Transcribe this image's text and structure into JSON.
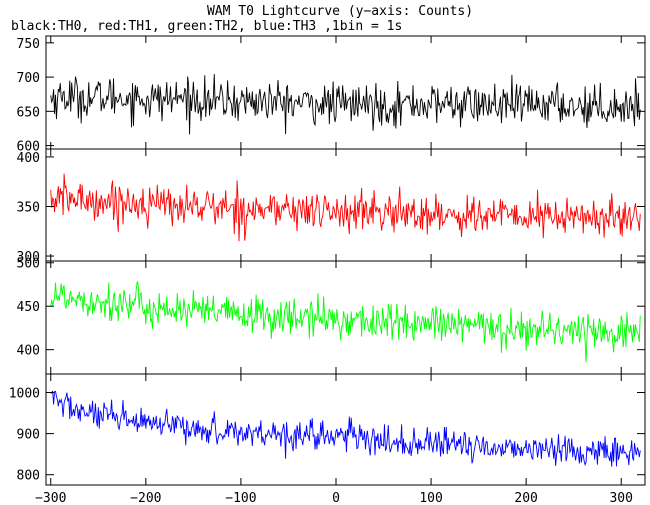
{
  "chart_data": {
    "type": "line",
    "title": "WAM T0 Lightcurve (y−axis: Counts)",
    "subtitle": "black:TH0, red:TH1, green:TH2, blue:TH3 ,1bin = 1s",
    "xlim": [
      -305,
      325
    ],
    "x_ticks": [
      -300,
      -200,
      -100,
      0,
      100,
      200,
      300
    ],
    "x_step": 1,
    "panels": [
      {
        "name": "TH0",
        "color": "#000000",
        "ylim": [
          595,
          760
        ],
        "y_ticks": [
          600,
          650,
          700,
          750
        ],
        "values_every_20s": [
          {
            "x": -300,
            "y": 670
          },
          {
            "x": -280,
            "y": 672
          },
          {
            "x": -260,
            "y": 669
          },
          {
            "x": -240,
            "y": 671
          },
          {
            "x": -220,
            "y": 670
          },
          {
            "x": -200,
            "y": 668
          },
          {
            "x": -180,
            "y": 667
          },
          {
            "x": -160,
            "y": 670
          },
          {
            "x": -140,
            "y": 666
          },
          {
            "x": -120,
            "y": 665
          },
          {
            "x": -100,
            "y": 664
          },
          {
            "x": -80,
            "y": 665
          },
          {
            "x": -60,
            "y": 663
          },
          {
            "x": -40,
            "y": 662
          },
          {
            "x": -20,
            "y": 661
          },
          {
            "x": 0,
            "y": 660
          },
          {
            "x": 20,
            "y": 661
          },
          {
            "x": 40,
            "y": 660
          },
          {
            "x": 60,
            "y": 659
          },
          {
            "x": 80,
            "y": 661
          },
          {
            "x": 100,
            "y": 660
          },
          {
            "x": 120,
            "y": 662
          },
          {
            "x": 140,
            "y": 660
          },
          {
            "x": 160,
            "y": 659
          },
          {
            "x": 180,
            "y": 658
          },
          {
            "x": 200,
            "y": 660
          },
          {
            "x": 220,
            "y": 661
          },
          {
            "x": 240,
            "y": 659
          },
          {
            "x": 260,
            "y": 658
          },
          {
            "x": 280,
            "y": 657
          },
          {
            "x": 300,
            "y": 658
          },
          {
            "x": 320,
            "y": 657
          }
        ],
        "scatter": 30
      },
      {
        "name": "TH1",
        "color": "#ff0000",
        "ylim": [
          295,
          408
        ],
        "y_ticks": [
          300,
          350,
          400
        ],
        "values_every_20s": [
          {
            "x": -300,
            "y": 357
          },
          {
            "x": -280,
            "y": 358
          },
          {
            "x": -260,
            "y": 356
          },
          {
            "x": -240,
            "y": 355
          },
          {
            "x": -220,
            "y": 354
          },
          {
            "x": -200,
            "y": 353
          },
          {
            "x": -180,
            "y": 352
          },
          {
            "x": -160,
            "y": 351
          },
          {
            "x": -140,
            "y": 350
          },
          {
            "x": -120,
            "y": 349
          },
          {
            "x": -100,
            "y": 348
          },
          {
            "x": -80,
            "y": 347
          },
          {
            "x": -60,
            "y": 347
          },
          {
            "x": -40,
            "y": 346
          },
          {
            "x": -20,
            "y": 345
          },
          {
            "x": 0,
            "y": 345
          },
          {
            "x": 20,
            "y": 344
          },
          {
            "x": 40,
            "y": 344
          },
          {
            "x": 60,
            "y": 343
          },
          {
            "x": 80,
            "y": 343
          },
          {
            "x": 100,
            "y": 342
          },
          {
            "x": 120,
            "y": 342
          },
          {
            "x": 140,
            "y": 341
          },
          {
            "x": 160,
            "y": 341
          },
          {
            "x": 180,
            "y": 340
          },
          {
            "x": 200,
            "y": 340
          },
          {
            "x": 220,
            "y": 340
          },
          {
            "x": 240,
            "y": 339
          },
          {
            "x": 260,
            "y": 339
          },
          {
            "x": 280,
            "y": 339
          },
          {
            "x": 300,
            "y": 338
          },
          {
            "x": 320,
            "y": 338
          }
        ],
        "scatter": 20
      },
      {
        "name": "TH2",
        "color": "#00ff00",
        "ylim": [
          372,
          502
        ],
        "y_ticks": [
          400,
          450,
          500
        ],
        "values_every_20s": [
          {
            "x": -300,
            "y": 462
          },
          {
            "x": -280,
            "y": 461
          },
          {
            "x": -260,
            "y": 458
          },
          {
            "x": -240,
            "y": 455
          },
          {
            "x": -220,
            "y": 452
          },
          {
            "x": -200,
            "y": 449
          },
          {
            "x": -180,
            "y": 447
          },
          {
            "x": -160,
            "y": 445
          },
          {
            "x": -140,
            "y": 443
          },
          {
            "x": -120,
            "y": 442
          },
          {
            "x": -100,
            "y": 440
          },
          {
            "x": -80,
            "y": 439
          },
          {
            "x": -60,
            "y": 438
          },
          {
            "x": -40,
            "y": 437
          },
          {
            "x": -20,
            "y": 436
          },
          {
            "x": 0,
            "y": 435
          },
          {
            "x": 20,
            "y": 434
          },
          {
            "x": 40,
            "y": 432
          },
          {
            "x": 60,
            "y": 431
          },
          {
            "x": 80,
            "y": 430
          },
          {
            "x": 100,
            "y": 429
          },
          {
            "x": 120,
            "y": 428
          },
          {
            "x": 140,
            "y": 427
          },
          {
            "x": 160,
            "y": 426
          },
          {
            "x": 180,
            "y": 425
          },
          {
            "x": 200,
            "y": 424
          },
          {
            "x": 220,
            "y": 423
          },
          {
            "x": 240,
            "y": 423
          },
          {
            "x": 260,
            "y": 422
          },
          {
            "x": 280,
            "y": 421
          },
          {
            "x": 300,
            "y": 421
          },
          {
            "x": 320,
            "y": 420
          }
        ],
        "scatter": 22
      },
      {
        "name": "TH3",
        "color": "#0000ff",
        "ylim": [
          775,
          1045
        ],
        "y_ticks": [
          800,
          900,
          1000
        ],
        "values_every_20s": [
          {
            "x": -300,
            "y": 990
          },
          {
            "x": -280,
            "y": 965
          },
          {
            "x": -260,
            "y": 948
          },
          {
            "x": -240,
            "y": 938
          },
          {
            "x": -220,
            "y": 930
          },
          {
            "x": -200,
            "y": 924
          },
          {
            "x": -180,
            "y": 918
          },
          {
            "x": -160,
            "y": 914
          },
          {
            "x": -140,
            "y": 910
          },
          {
            "x": -120,
            "y": 907
          },
          {
            "x": -100,
            "y": 904
          },
          {
            "x": -80,
            "y": 902
          },
          {
            "x": -60,
            "y": 900
          },
          {
            "x": -40,
            "y": 898
          },
          {
            "x": -20,
            "y": 897
          },
          {
            "x": 0,
            "y": 896
          },
          {
            "x": 20,
            "y": 893
          },
          {
            "x": 40,
            "y": 880
          },
          {
            "x": 60,
            "y": 878
          },
          {
            "x": 80,
            "y": 876
          },
          {
            "x": 100,
            "y": 874
          },
          {
            "x": 120,
            "y": 872
          },
          {
            "x": 140,
            "y": 870
          },
          {
            "x": 160,
            "y": 868
          },
          {
            "x": 180,
            "y": 866
          },
          {
            "x": 200,
            "y": 864
          },
          {
            "x": 220,
            "y": 862
          },
          {
            "x": 240,
            "y": 860
          },
          {
            "x": 260,
            "y": 858
          },
          {
            "x": 280,
            "y": 857
          },
          {
            "x": 300,
            "y": 855
          },
          {
            "x": 320,
            "y": 854
          }
        ],
        "scatter": 36
      }
    ]
  }
}
